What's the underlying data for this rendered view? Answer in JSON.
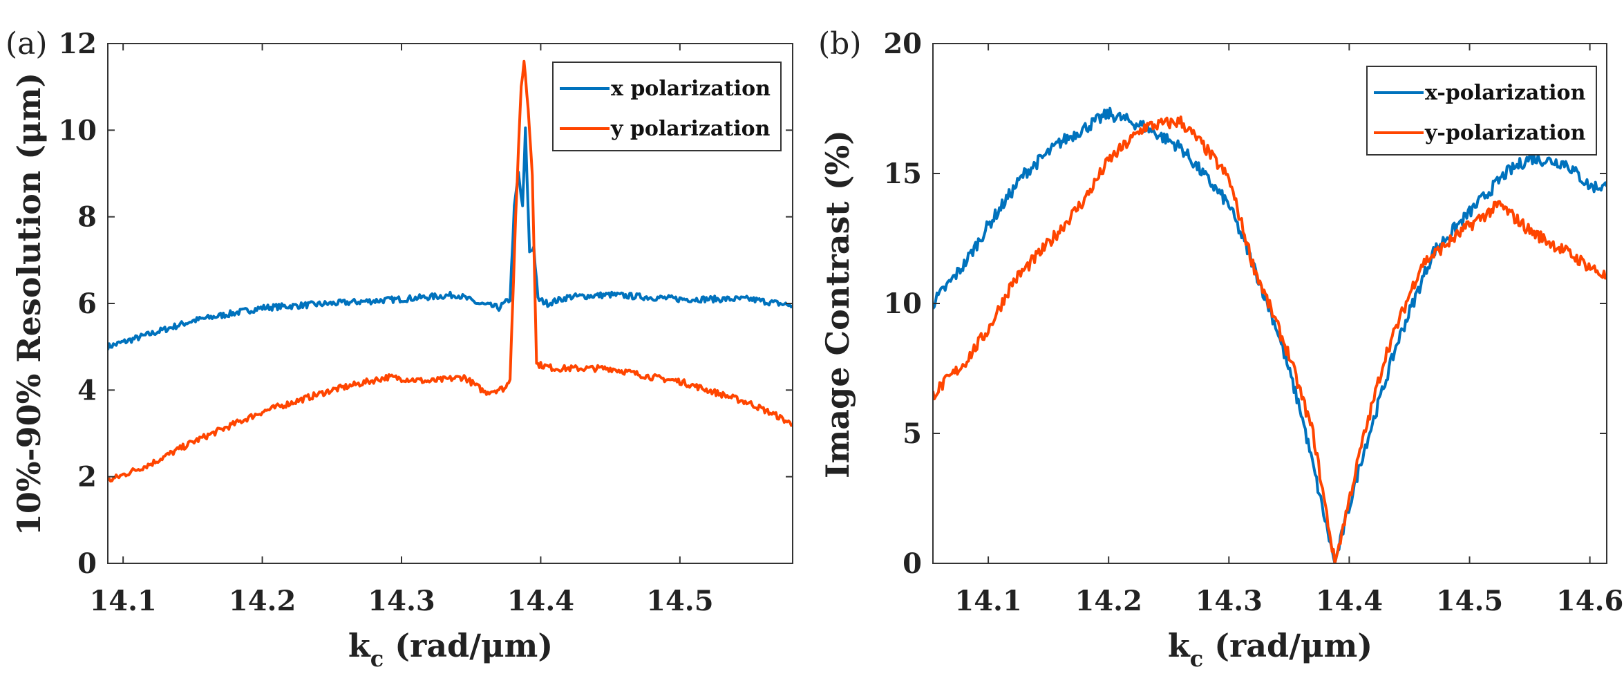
{
  "chart_data": [
    {
      "type": "line",
      "panel_label": "(a)",
      "xlabel": "k_c (rad/μm)",
      "xlabel_main": "k",
      "xlabel_sub": "c",
      "xlabel_rest": " (rad/μm)",
      "ylabel": "10%-90% Resolution (μm)",
      "xlim": [
        14.089,
        14.581
      ],
      "ylim": [
        0,
        12
      ],
      "xticks": [
        14.1,
        14.2,
        14.3,
        14.4,
        14.5
      ],
      "xtick_labels": [
        "14.1",
        "14.2",
        "14.3",
        "14.4",
        "14.5"
      ],
      "yticks": [
        0,
        2,
        4,
        6,
        8,
        10,
        12
      ],
      "ytick_labels": [
        "0",
        "2",
        "4",
        "6",
        "8",
        "10",
        "12"
      ],
      "legend_position": "top-right",
      "grid": false,
      "series": [
        {
          "name": "x polarization",
          "color": "#0072BD",
          "x": [
            14.089,
            14.12,
            14.15,
            14.2,
            14.25,
            14.3,
            14.34,
            14.355,
            14.37,
            14.378,
            14.381,
            14.384,
            14.387,
            14.389,
            14.392,
            14.395,
            14.398,
            14.405,
            14.42,
            14.45,
            14.5,
            14.55,
            14.581
          ],
          "y": [
            5.0,
            5.3,
            5.6,
            5.9,
            6.0,
            6.1,
            6.2,
            6.0,
            5.9,
            6.1,
            8.2,
            9.0,
            8.2,
            10.0,
            7.2,
            7.3,
            6.1,
            6.0,
            6.15,
            6.2,
            6.1,
            6.1,
            5.95
          ]
        },
        {
          "name": "y polarization",
          "color": "#FF4500",
          "x": [
            14.089,
            14.12,
            14.15,
            14.2,
            14.25,
            14.29,
            14.32,
            14.345,
            14.36,
            14.375,
            14.378,
            14.382,
            14.386,
            14.388,
            14.391,
            14.394,
            14.397,
            14.41,
            14.45,
            14.48,
            14.5,
            14.53,
            14.55,
            14.57,
            14.581
          ],
          "y": [
            1.9,
            2.3,
            2.8,
            3.5,
            4.0,
            4.3,
            4.2,
            4.3,
            3.95,
            4.05,
            4.3,
            8.0,
            11.0,
            11.6,
            10.5,
            9.0,
            4.6,
            4.5,
            4.5,
            4.3,
            4.2,
            3.9,
            3.7,
            3.4,
            3.2
          ]
        }
      ]
    },
    {
      "type": "line",
      "panel_label": "(b)",
      "xlabel": "k_c (rad/μm)",
      "xlabel_main": "k",
      "xlabel_sub": "c",
      "xlabel_rest": " (rad/μm)",
      "ylabel": "Image Contrast (%)",
      "xlim": [
        14.054,
        14.614
      ],
      "ylim": [
        0,
        20
      ],
      "xticks": [
        14.1,
        14.2,
        14.3,
        14.4,
        14.5,
        14.6
      ],
      "xtick_labels": [
        "14.1",
        "14.2",
        "14.3",
        "14.4",
        "14.5",
        "14.6"
      ],
      "yticks": [
        0,
        5,
        10,
        15,
        20
      ],
      "ytick_labels": [
        "0",
        "5",
        "10",
        "15",
        "20"
      ],
      "legend_position": "top-right",
      "grid": false,
      "series": [
        {
          "name": "x-polarization",
          "color": "#0072BD",
          "x": [
            14.054,
            14.08,
            14.1,
            14.13,
            14.16,
            14.2,
            14.23,
            14.26,
            14.3,
            14.32,
            14.34,
            14.36,
            14.388,
            14.41,
            14.44,
            14.47,
            14.5,
            14.53,
            14.55,
            14.58,
            14.6,
            14.614
          ],
          "y": [
            10,
            11.5,
            13,
            15,
            16.2,
            17.3,
            16.8,
            16,
            13.8,
            11.5,
            9,
            5.8,
            0,
            4,
            8.5,
            12,
            13.5,
            15.0,
            15.6,
            15.4,
            14.5,
            14.5
          ]
        },
        {
          "name": "y-polarization",
          "color": "#FF4500",
          "x": [
            14.054,
            14.08,
            14.1,
            14.12,
            14.15,
            14.18,
            14.2,
            14.23,
            14.26,
            14.28,
            14.3,
            14.32,
            14.35,
            14.37,
            14.388,
            14.41,
            14.43,
            14.46,
            14.5,
            14.525,
            14.55,
            14.58,
            14.614
          ],
          "y": [
            6.5,
            7.7,
            9,
            10.8,
            12.3,
            14,
            15.5,
            16.8,
            17.0,
            16.0,
            14.8,
            11.5,
            8,
            5,
            0,
            4.5,
            8,
            11.5,
            13,
            13.8,
            12.8,
            12,
            11
          ]
        }
      ]
    }
  ]
}
